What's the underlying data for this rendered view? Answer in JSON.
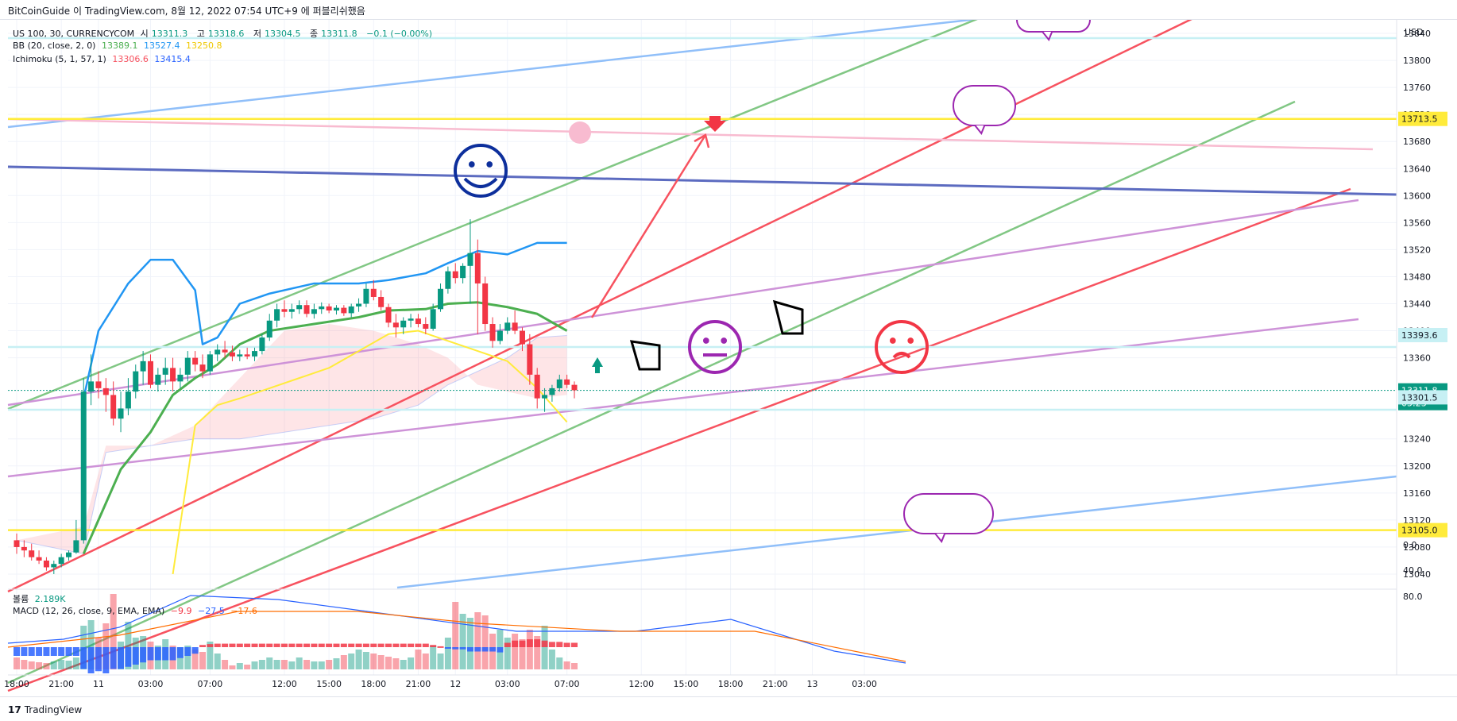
{
  "header": {
    "text": "BitCoinGuide 이 TradingView.com, 8월 12, 2022 07:54 UTC+9 에 퍼블리쉬했음"
  },
  "legend": {
    "symbol": "US 100, 30, CURRENCYCOM",
    "o_label": "시",
    "o": "13311.3",
    "h_label": "고",
    "h": "13318.6",
    "l_label": "저",
    "l": "13304.5",
    "c_label": "종",
    "c": "13311.8",
    "chg": "−0.1 (−0.00%)",
    "bb_label": "BB (20, close, 2, 0)",
    "bb_mid": "13389.1",
    "bb_up": "13527.4",
    "bb_low": "13250.8",
    "ich_label": "Ichimoku (5, 1, 57, 1)",
    "ich_a": "13306.6",
    "ich_b": "13415.4",
    "vol_label": "볼륨",
    "vol": "2.189K",
    "macd_label": "MACD (12, 26, close, 9, EMA, EMA)",
    "macd_hist": "−9.9",
    "macd": "−27.5",
    "macd_sig": "−17.6"
  },
  "axis": {
    "currency": "USD"
  },
  "footer": {
    "brand": "TradingView",
    "logo": "17"
  },
  "colors": {
    "up": "#089981",
    "down": "#f23645",
    "bb_mid": "#4caf50",
    "bb_up": "#2196f3",
    "bb_low": "#ffeb3b",
    "ich_a": "#f7525f",
    "ich_b": "#2962ff"
  },
  "chart_data": {
    "type": "candlestick",
    "title": "US 100, 30, CURRENCYCOM",
    "y_ticks": [
      13040,
      13080,
      13120,
      13160,
      13200,
      13240,
      13360,
      13400,
      13440,
      13480,
      13520,
      13560,
      13600,
      13640,
      13680,
      13720,
      13760,
      13800,
      13840
    ],
    "x_ticks": [
      {
        "label": "18:00",
        "i": 0
      },
      {
        "label": "21:00",
        "i": 6
      },
      {
        "label": "11",
        "i": 11
      },
      {
        "label": "03:00",
        "i": 18
      },
      {
        "label": "07:00",
        "i": 26
      },
      {
        "label": "12:00",
        "i": 36
      },
      {
        "label": "15:00",
        "i": 42
      },
      {
        "label": "18:00",
        "i": 48
      },
      {
        "label": "21:00",
        "i": 54
      },
      {
        "label": "12",
        "i": 59
      },
      {
        "label": "03:00",
        "i": 66
      },
      {
        "label": "07:00",
        "i": 74
      },
      {
        "label": "12:00",
        "i": 84
      },
      {
        "label": "15:00",
        "i": 90
      },
      {
        "label": "18:00",
        "i": 96
      },
      {
        "label": "21:00",
        "i": 102
      },
      {
        "label": "13",
        "i": 107
      },
      {
        "label": "03:00",
        "i": 114
      }
    ],
    "price_labels": [
      {
        "value": 13713.5,
        "label": "13713.5",
        "color": "#ffeb3b"
      },
      {
        "value": 13393.6,
        "label": "13393.6",
        "color": "#c7f0f4"
      },
      {
        "value": 13311.8,
        "label": "13311.8",
        "sub": "05:23",
        "color": "#089981"
      },
      {
        "value": 13301.5,
        "label": "13301.5",
        "color": "#c7f0f4"
      },
      {
        "value": 13105.0,
        "label": "13105.0",
        "color": "#ffeb3b"
      }
    ],
    "candles": [
      [
        13090,
        13100,
        13070,
        13080
      ],
      [
        13080,
        13090,
        13065,
        13075
      ],
      [
        13075,
        13085,
        13060,
        13065
      ],
      [
        13065,
        13075,
        13055,
        13060
      ],
      [
        13060,
        13065,
        13045,
        13050
      ],
      [
        13050,
        13060,
        13040,
        13055
      ],
      [
        13055,
        13070,
        13050,
        13065
      ],
      [
        13065,
        13075,
        13060,
        13072
      ],
      [
        13072,
        13120,
        13070,
        13090
      ],
      [
        13090,
        13330,
        13085,
        13310
      ],
      [
        13310,
        13365,
        13290,
        13325
      ],
      [
        13325,
        13340,
        13300,
        13315
      ],
      [
        13315,
        13330,
        13280,
        13305
      ],
      [
        13305,
        13325,
        13260,
        13270
      ],
      [
        13270,
        13310,
        13250,
        13285
      ],
      [
        13285,
        13330,
        13275,
        13310
      ],
      [
        13310,
        13350,
        13300,
        13340
      ],
      [
        13340,
        13370,
        13320,
        13355
      ],
      [
        13355,
        13365,
        13315,
        13320
      ],
      [
        13320,
        13345,
        13310,
        13335
      ],
      [
        13335,
        13360,
        13320,
        13345
      ],
      [
        13345,
        13360,
        13310,
        13325
      ],
      [
        13325,
        13345,
        13315,
        13335
      ],
      [
        13335,
        13370,
        13325,
        13360
      ],
      [
        13360,
        13370,
        13340,
        13350
      ],
      [
        13350,
        13365,
        13330,
        13340
      ],
      [
        13340,
        13370,
        13335,
        13365
      ],
      [
        13365,
        13380,
        13355,
        13372
      ],
      [
        13372,
        13385,
        13360,
        13368
      ],
      [
        13368,
        13378,
        13355,
        13362
      ],
      [
        13362,
        13372,
        13355,
        13365
      ],
      [
        13365,
        13375,
        13358,
        13362
      ],
      [
        13362,
        13375,
        13355,
        13370
      ],
      [
        13370,
        13395,
        13365,
        13390
      ],
      [
        13390,
        13425,
        13385,
        13415
      ],
      [
        13415,
        13440,
        13405,
        13432
      ],
      [
        13432,
        13445,
        13420,
        13428
      ],
      [
        13428,
        13440,
        13418,
        13432
      ],
      [
        13432,
        13445,
        13425,
        13438
      ],
      [
        13438,
        13445,
        13420,
        13425
      ],
      [
        13425,
        13440,
        13418,
        13432
      ],
      [
        13432,
        13442,
        13425,
        13436
      ],
      [
        13436,
        13440,
        13426,
        13430
      ],
      [
        13430,
        13438,
        13424,
        13434
      ],
      [
        13434,
        13438,
        13422,
        13426
      ],
      [
        13426,
        13440,
        13420,
        13436
      ],
      [
        13436,
        13448,
        13428,
        13440
      ],
      [
        13440,
        13470,
        13435,
        13462
      ],
      [
        13462,
        13475,
        13445,
        13450
      ],
      [
        13450,
        13460,
        13430,
        13435
      ],
      [
        13435,
        13440,
        13405,
        13412
      ],
      [
        13412,
        13425,
        13390,
        13405
      ],
      [
        13405,
        13420,
        13395,
        13415
      ],
      [
        13415,
        13425,
        13405,
        13418
      ],
      [
        13418,
        13425,
        13405,
        13410
      ],
      [
        13410,
        13420,
        13395,
        13403
      ],
      [
        13403,
        13440,
        13400,
        13432
      ],
      [
        13432,
        13470,
        13428,
        13462
      ],
      [
        13462,
        13495,
        13455,
        13488
      ],
      [
        13488,
        13500,
        13470,
        13478
      ],
      [
        13478,
        13500,
        13470,
        13496
      ],
      [
        13496,
        13565,
        13440,
        13515
      ],
      [
        13515,
        13535,
        13395,
        13470
      ],
      [
        13470,
        13480,
        13400,
        13410
      ],
      [
        13410,
        13420,
        13375,
        13385
      ],
      [
        13385,
        13410,
        13380,
        13400
      ],
      [
        13400,
        13420,
        13395,
        13412
      ],
      [
        13412,
        13430,
        13395,
        13400
      ],
      [
        13400,
        13405,
        13370,
        13380
      ],
      [
        13380,
        13395,
        13320,
        13335
      ],
      [
        13335,
        13345,
        13285,
        13300
      ],
      [
        13300,
        13315,
        13280,
        13305
      ],
      [
        13305,
        13320,
        13295,
        13315
      ],
      [
        13315,
        13335,
        13310,
        13328
      ],
      [
        13328,
        13335,
        13315,
        13320
      ],
      [
        13320,
        13325,
        13300,
        13312
      ]
    ],
    "bb_upper": [
      [
        9,
        13300
      ],
      [
        11,
        13400
      ],
      [
        15,
        13470
      ],
      [
        18,
        13505
      ],
      [
        21,
        13505
      ],
      [
        24,
        13460
      ],
      [
        25,
        13380
      ],
      [
        27,
        13390
      ],
      [
        30,
        13440
      ],
      [
        34,
        13455
      ],
      [
        40,
        13470
      ],
      [
        46,
        13470
      ],
      [
        50,
        13475
      ],
      [
        55,
        13485
      ],
      [
        58,
        13500
      ],
      [
        62,
        13518
      ],
      [
        66,
        13513
      ],
      [
        70,
        13530
      ],
      [
        74,
        13530
      ]
    ],
    "bb_middle": [
      [
        9,
        13070
      ],
      [
        11,
        13120
      ],
      [
        14,
        13195
      ],
      [
        18,
        13250
      ],
      [
        21,
        13305
      ],
      [
        24,
        13330
      ],
      [
        27,
        13350
      ],
      [
        30,
        13380
      ],
      [
        34,
        13400
      ],
      [
        40,
        13410
      ],
      [
        46,
        13420
      ],
      [
        50,
        13430
      ],
      [
        55,
        13432
      ],
      [
        58,
        13440
      ],
      [
        62,
        13442
      ],
      [
        66,
        13435
      ],
      [
        70,
        13425
      ],
      [
        74,
        13400
      ]
    ],
    "bb_lower": [
      [
        21,
        13040
      ],
      [
        24,
        13260
      ],
      [
        27,
        13290
      ],
      [
        30,
        13300
      ],
      [
        34,
        13315
      ],
      [
        38,
        13330
      ],
      [
        42,
        13345
      ],
      [
        46,
        13370
      ],
      [
        50,
        13395
      ],
      [
        54,
        13400
      ],
      [
        58,
        13385
      ],
      [
        62,
        13370
      ],
      [
        66,
        13355
      ],
      [
        70,
        13315
      ],
      [
        74,
        13265
      ]
    ],
    "ichimoku_a": [
      [
        0,
        13090
      ],
      [
        9,
        13110
      ],
      [
        12,
        13230
      ],
      [
        18,
        13230
      ],
      [
        24,
        13260
      ],
      [
        30,
        13330
      ],
      [
        36,
        13400
      ],
      [
        42,
        13410
      ],
      [
        48,
        13400
      ],
      [
        54,
        13380
      ],
      [
        58,
        13360
      ],
      [
        62,
        13320
      ],
      [
        66,
        13310
      ],
      [
        70,
        13300
      ],
      [
        74,
        13305
      ]
    ],
    "ichimoku_b": [
      [
        0,
        13090
      ],
      [
        9,
        13070
      ],
      [
        12,
        13220
      ],
      [
        18,
        13230
      ],
      [
        24,
        13240
      ],
      [
        30,
        13240
      ],
      [
        36,
        13250
      ],
      [
        42,
        13260
      ],
      [
        48,
        13270
      ],
      [
        54,
        13290
      ],
      [
        58,
        13320
      ],
      [
        62,
        13340
      ],
      [
        66,
        13360
      ],
      [
        70,
        13390
      ],
      [
        74,
        13393
      ]
    ],
    "volume": [
      0.15,
      0.12,
      0.1,
      0.09,
      0.08,
      0.1,
      0.12,
      0.11,
      0.15,
      0.55,
      0.62,
      0.4,
      0.58,
      0.95,
      0.35,
      0.6,
      0.4,
      0.42,
      0.35,
      0.3,
      0.38,
      0.3,
      0.28,
      0.3,
      0.25,
      0.22,
      0.35,
      0.2,
      0.12,
      0.05,
      0.08,
      0.06,
      0.1,
      0.12,
      0.15,
      0.12,
      0.12,
      0.1,
      0.15,
      0.12,
      0.1,
      0.1,
      0.12,
      0.14,
      0.18,
      0.2,
      0.25,
      0.22,
      0.2,
      0.18,
      0.16,
      0.14,
      0.12,
      0.15,
      0.25,
      0.2,
      0.3,
      0.2,
      0.4,
      0.85,
      0.7,
      0.65,
      0.72,
      0.68,
      0.45,
      0.5,
      0.4,
      0.45,
      0.38,
      0.5,
      0.42,
      0.55,
      0.25,
      0.15,
      0.1,
      0.08
    ],
    "macd_hist": [
      -0.2,
      -0.2,
      -0.2,
      -0.2,
      -0.2,
      -0.2,
      -0.2,
      -0.2,
      -0.2,
      -0.5,
      -0.6,
      -0.55,
      -0.6,
      -0.5,
      -0.5,
      -0.45,
      -0.4,
      -0.35,
      -0.3,
      -0.3,
      -0.3,
      -0.3,
      -0.25,
      -0.2,
      -0.15,
      0.05,
      0.07,
      0.08,
      0.08,
      0.08,
      0.08,
      0.08,
      0.08,
      0.08,
      0.08,
      0.08,
      0.08,
      0.08,
      0.08,
      0.08,
      0.08,
      0.08,
      0.08,
      0.08,
      0.08,
      0.08,
      0.08,
      0.08,
      0.08,
      0.08,
      0.08,
      0.08,
      0.08,
      0.08,
      0.08,
      0.08,
      0.05,
      0.02,
      -0.02,
      -0.05,
      -0.05,
      -0.1,
      -0.1,
      -0.1,
      -0.1,
      -0.12,
      0.1,
      0.15,
      0.15,
      0.18,
      0.18,
      0.15,
      0.12,
      0.12,
      0.1,
      0.1
    ]
  }
}
